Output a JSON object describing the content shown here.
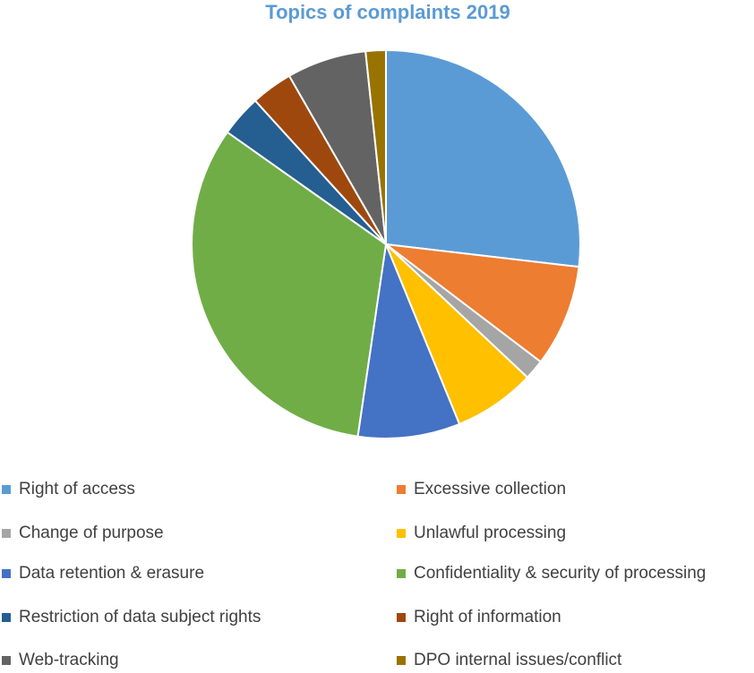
{
  "chart_data": {
    "type": "pie",
    "title": "Topics of complaints 2019",
    "categories": [
      "Right of access",
      "Excessive collection",
      "Change of purpose",
      "Unlawful processing",
      "Data retention & erasure",
      "Confidentiality & security of processing",
      "Restriction of data subject rights",
      "Right of information",
      "Web-tracking",
      "DPO internal issues/conflict"
    ],
    "values": [
      27.2,
      8.6,
      1.7,
      6.9,
      8.6,
      32.9,
      3.5,
      3.5,
      6.7,
      1.7
    ],
    "unit": "percent of complaints (estimated from slice angles)",
    "colors": [
      "#5b9bd5",
      "#ed7d31",
      "#a5a5a5",
      "#ffc000",
      "#4472c4",
      "#70ad47",
      "#255e91",
      "#9e480e",
      "#636363",
      "#997300"
    ],
    "legend_placement": "bottom, two columns",
    "start_angle": "12 o'clock, clockwise"
  }
}
